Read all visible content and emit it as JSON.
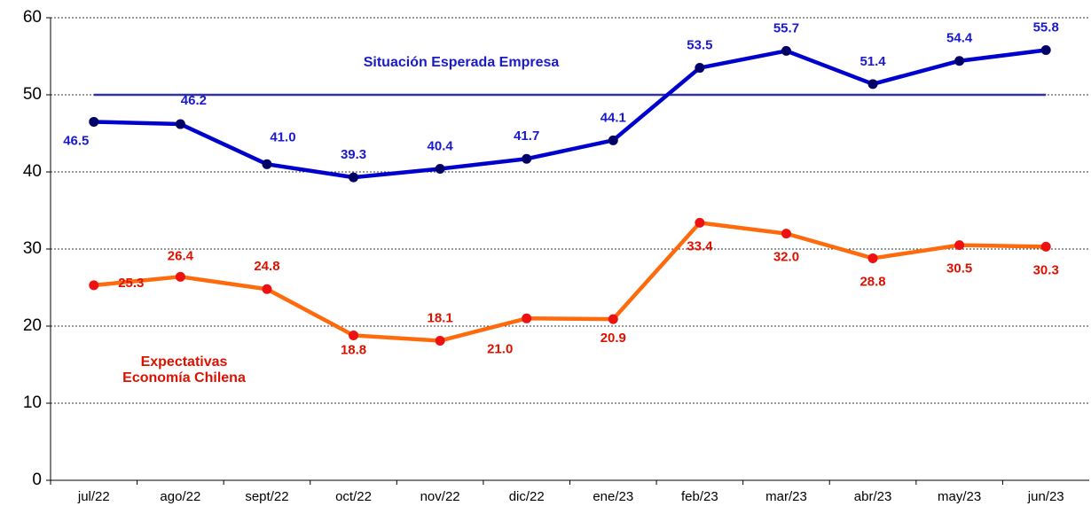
{
  "chart_data": {
    "type": "line",
    "categories": [
      "jul/22",
      "ago/22",
      "sept/22",
      "oct/22",
      "nov/22",
      "dic/22",
      "ene/23",
      "feb/23",
      "mar/23",
      "abr/23",
      "may/23",
      "jun/23"
    ],
    "series": [
      {
        "name": "Situación Esperada Empresa",
        "color": "#0000cc",
        "marker_color": "#000066",
        "label_color": "#1a1acc",
        "values": [
          46.5,
          46.2,
          41.0,
          39.3,
          40.4,
          41.7,
          44.1,
          53.5,
          55.7,
          51.4,
          54.4,
          55.8
        ],
        "value_labels": [
          "46.5",
          "46.2",
          "41.0",
          "39.3",
          "40.4",
          "41.7",
          "44.1",
          "53.5",
          "55.7",
          "51.4",
          "54.4",
          "55.8"
        ]
      },
      {
        "name": "Expectativas Economía Chilena",
        "color": "#ff6a0d",
        "marker_color": "#ee1111",
        "label_color": "#dd1100",
        "values": [
          25.3,
          26.4,
          24.8,
          18.8,
          18.1,
          21.0,
          20.9,
          33.4,
          32.0,
          28.8,
          30.5,
          30.3
        ],
        "value_labels": [
          "25.3",
          "26.4",
          "24.8",
          "18.8",
          "18.1",
          "21.0",
          "20.9",
          "33.4",
          "32.0",
          "28.8",
          "30.5",
          "30.3"
        ]
      }
    ],
    "reference_line": {
      "value": 50,
      "color": "#333399"
    },
    "ylim": [
      0,
      60
    ],
    "yticks": [
      0,
      10,
      20,
      30,
      40,
      50,
      60
    ],
    "grid": true
  }
}
